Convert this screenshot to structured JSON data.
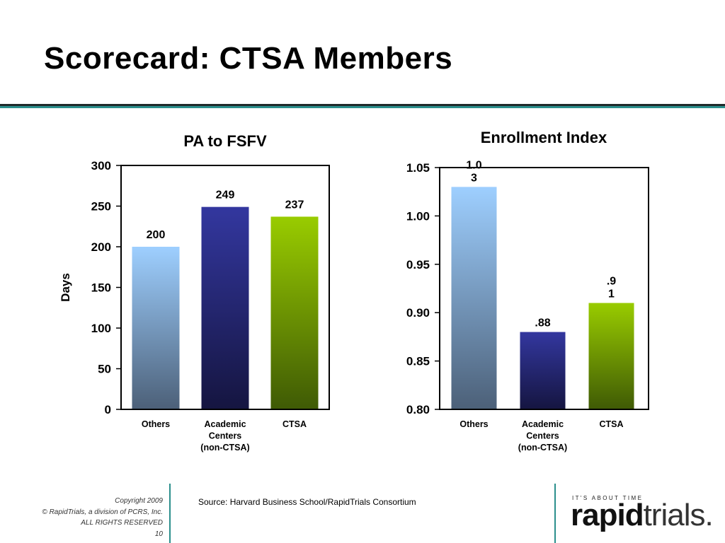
{
  "slide": {
    "title": "Scorecard: CTSA Members",
    "source": "Source: Harvard Business School/RapidTrials Consortium",
    "footer": {
      "copyright": "Copyright 2009",
      "company": "© RapidTrials, a division of PCRS, Inc.",
      "rights": "ALL RIGHTS RESERVED",
      "page": "10"
    },
    "logo": {
      "tagline": "IT'S ABOUT TIME",
      "word_strong": "rapid",
      "word_light": "trials."
    },
    "colors": {
      "accent_teal": "#2b8f8c",
      "others_top": "#9ecfff",
      "others_bottom": "#4c6078",
      "academic_top": "#33379f",
      "academic_bottom": "#151540",
      "ctsa_top": "#99cc00",
      "ctsa_bottom": "#3f5a05"
    }
  },
  "chart_data": [
    {
      "type": "bar",
      "title": "PA to FSFV",
      "ylabel": "Days",
      "xlabel": "",
      "categories": [
        [
          "Others"
        ],
        [
          "Academic",
          "Centers",
          "(non-CTSA)"
        ],
        [
          "CTSA"
        ]
      ],
      "values": [
        200,
        249,
        237
      ],
      "value_labels": [
        "200",
        "249",
        "237"
      ],
      "ylim": [
        0,
        300
      ],
      "yticks": [
        0,
        50,
        100,
        150,
        200,
        250,
        300
      ],
      "ytick_labels": [
        "0",
        "50",
        "100",
        "150",
        "200",
        "250",
        "300"
      ],
      "grid": false,
      "legend": "none"
    },
    {
      "type": "bar",
      "title": "Enrollment Index",
      "ylabel": "",
      "xlabel": "",
      "categories": [
        [
          "Others"
        ],
        [
          "Academic",
          "Centers",
          "(non-CTSA)"
        ],
        [
          "CTSA"
        ]
      ],
      "values": [
        1.03,
        0.88,
        0.91
      ],
      "value_labels": [
        [
          "1.0",
          "3"
        ],
        [
          ".88"
        ],
        [
          ".9",
          "1"
        ]
      ],
      "ylim": [
        0.8,
        1.05
      ],
      "yticks": [
        0.8,
        0.85,
        0.9,
        0.95,
        1.0,
        1.05
      ],
      "ytick_labels": [
        "0.80",
        "0.85",
        "0.90",
        "0.95",
        "1.00",
        "1.05"
      ],
      "grid": false,
      "legend": "none"
    }
  ]
}
